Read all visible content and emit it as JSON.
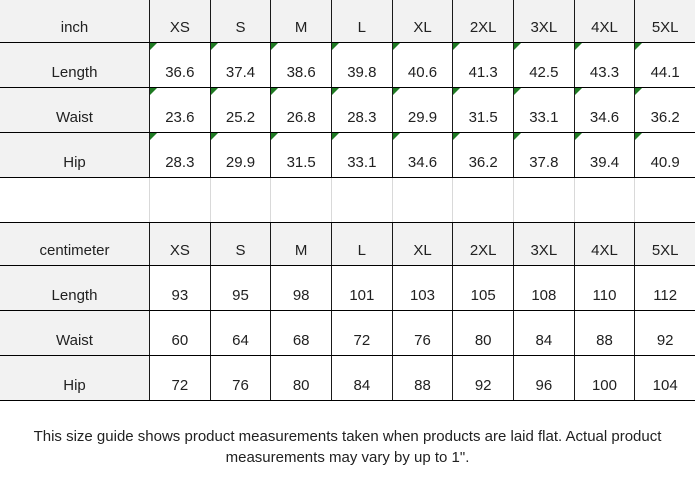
{
  "colors": {
    "sheet_bg": "#ffffff",
    "header_bg": "#f2f2f2",
    "grid_line": "#000000",
    "grid_line_v": "#1a1a1a",
    "grid_line_light": "#d9d9d9",
    "flag_green": "#1e7a22",
    "text": "#212121"
  },
  "chart_data": [
    {
      "type": "table",
      "unit": "inch",
      "sizes": [
        "XS",
        "S",
        "M",
        "L",
        "XL",
        "2XL",
        "3XL",
        "4XL",
        "5XL"
      ],
      "cell_flag_marker": true,
      "rows": [
        {
          "label": "Length",
          "values": [
            "36.6",
            "37.4",
            "38.6",
            "39.8",
            "40.6",
            "41.3",
            "42.5",
            "43.3",
            "44.1"
          ]
        },
        {
          "label": "Waist",
          "values": [
            "23.6",
            "25.2",
            "26.8",
            "28.3",
            "29.9",
            "31.5",
            "33.1",
            "34.6",
            "36.2"
          ]
        },
        {
          "label": "Hip",
          "values": [
            "28.3",
            "29.9",
            "31.5",
            "33.1",
            "34.6",
            "36.2",
            "37.8",
            "39.4",
            "40.9"
          ]
        }
      ]
    },
    {
      "type": "table",
      "unit": "centimeter",
      "sizes": [
        "XS",
        "S",
        "M",
        "L",
        "XL",
        "2XL",
        "3XL",
        "4XL",
        "5XL"
      ],
      "cell_flag_marker": false,
      "rows": [
        {
          "label": "Length",
          "values": [
            "93",
            "95",
            "98",
            "101",
            "103",
            "105",
            "108",
            "110",
            "112"
          ]
        },
        {
          "label": "Waist",
          "values": [
            "60",
            "64",
            "68",
            "72",
            "76",
            "80",
            "84",
            "88",
            "92"
          ]
        },
        {
          "label": "Hip",
          "values": [
            "72",
            "76",
            "80",
            "84",
            "88",
            "92",
            "96",
            "100",
            "104"
          ]
        }
      ]
    }
  ],
  "footer": {
    "note": "This size guide shows product measurements taken when products are laid flat. Actual product measurements may vary by up to 1\"."
  }
}
